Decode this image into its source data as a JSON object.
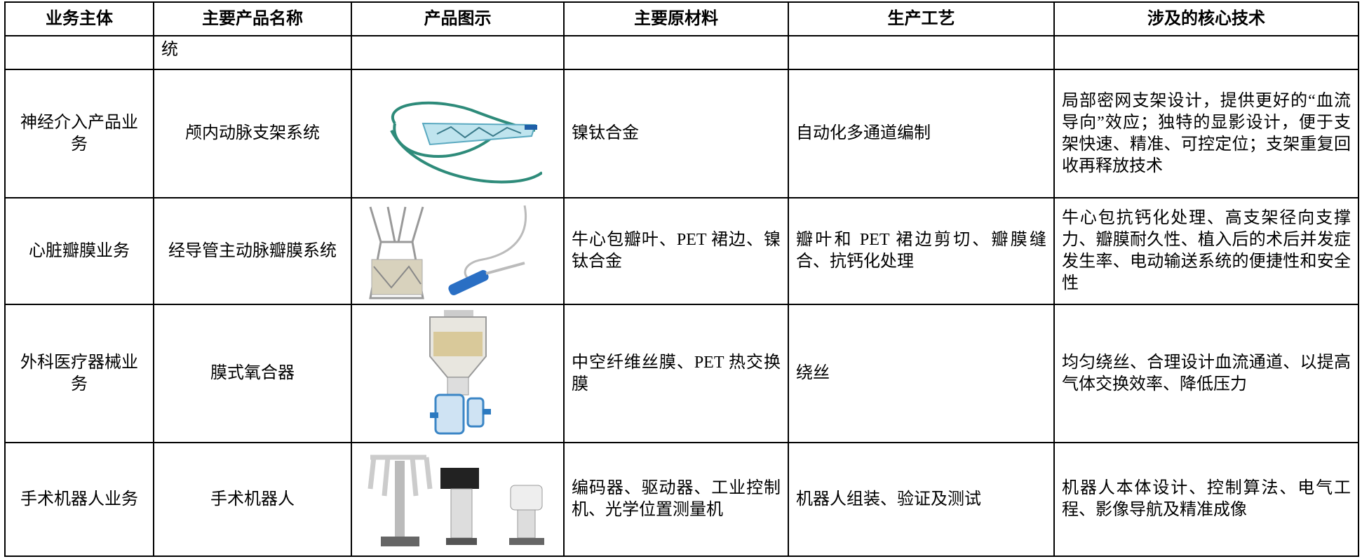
{
  "table": {
    "header": [
      "业务主体",
      "主要产品名称",
      "产品图示",
      "主要原材料",
      "生产工艺",
      "涉及的核心技术"
    ],
    "continuation": "统",
    "rows": [
      {
        "segment": "神经介入产品业务",
        "product": "颅内动脉支架系统",
        "materials": "镍钛合金",
        "process": "自动化多通道编制",
        "technology": "局部密网支架设计，提供更好的“血流导向”效应；独特的显影设计，便于支架快速、精准、可控定位；支架重复回收再释放技术"
      },
      {
        "segment": "心脏瓣膜业务",
        "product": "经导管主动脉瓣膜系统",
        "materials": "牛心包瓣叶、PET 裙边、镍钛合金",
        "process": "瓣叶和 PET 裙边剪切、瓣膜缝合、抗钙化处理",
        "technology": "牛心包抗钙化处理、高支架径向支撑力、瓣膜耐久性、植入后的术后并发症发生率、电动输送系统的便捷性和安全性"
      },
      {
        "segment": "外科医疗器械业务",
        "product": "膜式氧合器",
        "materials": "中空纤维丝膜、PET 热交换膜",
        "process": "绕丝",
        "technology": "均匀绕丝、合理设计血流通道、以提高气体交换效率、降低压力"
      },
      {
        "segment": "手术机器人业务",
        "product": "手术机器人",
        "materials": "编码器、驱动器、工业控制机、光学位置测量机",
        "process": "机器人组装、验证及测试",
        "technology": "机器人本体设计、控制算法、电气工程、影像导航及精准成像"
      }
    ]
  }
}
